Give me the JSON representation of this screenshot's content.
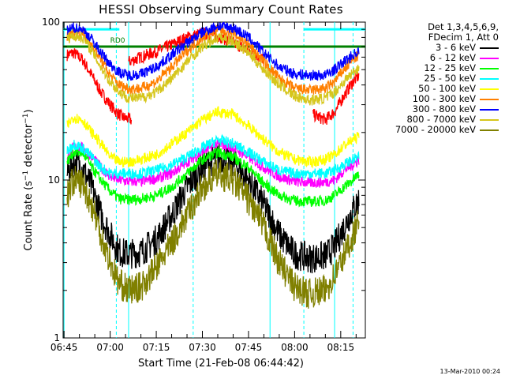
{
  "chart_data": {
    "type": "line",
    "title": "HESSI Observing Summary Count Rates",
    "xlabel": "Start Time (21-Feb-08 06:44:42)",
    "ylabel_parts": [
      "Count Rate (s",
      "−1",
      " detector",
      "−1",
      ")"
    ],
    "y_scale": "log",
    "ylim": [
      1,
      100
    ],
    "y_ticks": [
      1,
      10,
      100
    ],
    "y_tick_labels": [
      "1",
      "10",
      "100"
    ],
    "x_range_minutes": [
      "06:45",
      "08:23"
    ],
    "x_ticks": [
      "06:45",
      "07:00",
      "07:15",
      "07:30",
      "07:45",
      "08:00",
      "08:15"
    ],
    "legend_header": [
      "Det 1,3,4,5,6,9,",
      "FDecim 1, Att 0"
    ],
    "grid": false,
    "series": [
      {
        "name": "3 - 6 keV",
        "color": "#000000",
        "x": [
          "06:46",
          "06:48",
          "06:51",
          "06:54",
          "06:57",
          "07:00",
          "07:03",
          "07:06",
          "07:10",
          "07:15",
          "07:20",
          "07:25",
          "07:30",
          "07:35",
          "07:40",
          "07:45",
          "07:50",
          "07:55",
          "08:00",
          "08:05",
          "08:10",
          "08:13",
          "08:16",
          "08:19",
          "08:21"
        ],
        "values": [
          11,
          13,
          12,
          9,
          6,
          4.5,
          3.5,
          3.4,
          3.5,
          4.2,
          6,
          9,
          12,
          14,
          13,
          10,
          7,
          4.5,
          3.4,
          3.2,
          3.3,
          3.8,
          5,
          6.5,
          7.5
        ]
      },
      {
        "name": "6 - 12 keV",
        "color": "#ff00ff",
        "x": [
          "06:46",
          "06:48",
          "06:51",
          "06:54",
          "06:57",
          "07:00",
          "07:03",
          "07:06",
          "07:10",
          "07:15",
          "07:20",
          "07:25",
          "07:30",
          "07:35",
          "07:40",
          "07:45",
          "07:50",
          "07:55",
          "08:00",
          "08:05",
          "08:10",
          "08:13",
          "08:16",
          "08:19",
          "08:21"
        ],
        "values": [
          14,
          16,
          16,
          14,
          12,
          10.5,
          10,
          9.8,
          9.8,
          10.2,
          11,
          13,
          15,
          17,
          16,
          14,
          12,
          10.5,
          9.8,
          9.6,
          9.7,
          10,
          11.5,
          12.5,
          13.5
        ]
      },
      {
        "name": "12 - 25 keV",
        "color": "#00ff00",
        "x": [
          "06:46",
          "06:48",
          "06:51",
          "06:54",
          "06:57",
          "07:00",
          "07:03",
          "07:06",
          "07:10",
          "07:15",
          "07:20",
          "07:25",
          "07:30",
          "07:35",
          "07:40",
          "07:45",
          "07:50",
          "07:55",
          "08:00",
          "08:05",
          "08:10",
          "08:13",
          "08:16",
          "08:19",
          "08:21"
        ],
        "values": [
          13,
          15,
          15,
          12,
          10,
          8.5,
          7.6,
          7.5,
          7.6,
          8,
          9,
          11,
          13.5,
          15,
          14,
          12,
          9.5,
          8,
          7.4,
          7.3,
          7.4,
          8,
          9,
          10,
          11
        ]
      },
      {
        "name": "25 - 50 keV",
        "color": "#00ffff",
        "x": [
          "06:46",
          "06:48",
          "06:51",
          "06:54",
          "06:57",
          "07:00",
          "07:03",
          "07:06",
          "07:10",
          "07:15",
          "07:20",
          "07:25",
          "07:30",
          "07:35",
          "07:40",
          "07:45",
          "07:50",
          "07:55",
          "08:00",
          "08:05",
          "08:10",
          "08:13",
          "08:16",
          "08:19",
          "08:21"
        ],
        "values": [
          15,
          17,
          16,
          14,
          12,
          11,
          11,
          11,
          11,
          11.5,
          12.5,
          14,
          16,
          18,
          17,
          15,
          13,
          11.5,
          11,
          11,
          11,
          11.5,
          12.5,
          13.5,
          14
        ]
      },
      {
        "name": "50 - 100 keV",
        "color": "#ffff00",
        "x": [
          "06:46",
          "06:48",
          "06:51",
          "06:54",
          "06:57",
          "07:00",
          "07:03",
          "07:06",
          "07:10",
          "07:15",
          "07:20",
          "07:25",
          "07:30",
          "07:35",
          "07:40",
          "07:45",
          "07:50",
          "07:55",
          "08:00",
          "08:05",
          "08:10",
          "08:13",
          "08:16",
          "08:19",
          "08:21"
        ],
        "values": [
          22,
          25,
          24,
          20,
          17,
          14,
          13,
          13,
          13.5,
          14.5,
          17,
          20,
          24,
          27,
          26,
          22,
          18,
          15,
          13.5,
          13,
          13.5,
          14.5,
          16.5,
          18,
          19
        ]
      },
      {
        "name": "100 - 300 keV",
        "color": "#ff7f00",
        "x": [
          "06:46",
          "06:48",
          "06:51",
          "06:54",
          "06:57",
          "07:00",
          "07:03",
          "07:06",
          "07:10",
          "07:15",
          "07:20",
          "07:25",
          "07:30",
          "07:35",
          "07:40",
          "07:45",
          "07:50",
          "07:55",
          "08:00",
          "08:05",
          "08:10",
          "08:13",
          "08:16",
          "08:19",
          "08:21"
        ],
        "values": [
          82,
          86,
          85,
          72,
          58,
          46,
          40,
          38,
          38,
          42,
          52,
          66,
          80,
          90,
          85,
          72,
          56,
          44,
          38,
          37,
          38,
          42,
          50,
          58,
          62
        ]
      },
      {
        "name": "300 - 800 keV",
        "color": "#0000ff",
        "x": [
          "06:46",
          "06:48",
          "06:51",
          "06:54",
          "06:57",
          "07:00",
          "07:03",
          "07:06",
          "07:10",
          "07:15",
          "07:20",
          "07:25",
          "07:30",
          "07:35",
          "07:40",
          "07:45",
          "07:50",
          "07:55",
          "08:00",
          "08:05",
          "08:10",
          "08:13",
          "08:16",
          "08:19",
          "08:21"
        ],
        "values": [
          88,
          92,
          90,
          78,
          64,
          54,
          48,
          46,
          47,
          52,
          62,
          74,
          86,
          95,
          92,
          80,
          64,
          52,
          47,
          46,
          46,
          50,
          56,
          62,
          66
        ]
      },
      {
        "name": "800 - 7000 keV",
        "color": "#d6c61c",
        "x": [
          "06:46",
          "06:48",
          "06:51",
          "06:54",
          "06:57",
          "07:00",
          "07:03",
          "07:06",
          "07:10",
          "07:15",
          "07:20",
          "07:25",
          "07:30",
          "07:35",
          "07:40",
          "07:45",
          "07:50",
          "07:55",
          "08:00",
          "08:05",
          "08:10",
          "08:13",
          "08:16",
          "08:19",
          "08:21"
        ],
        "values": [
          78,
          82,
          80,
          66,
          52,
          42,
          36,
          33,
          33,
          36,
          44,
          56,
          70,
          80,
          76,
          64,
          50,
          40,
          34,
          32,
          33,
          36,
          42,
          48,
          52
        ]
      },
      {
        "name": "7000 - 20000 keV",
        "color": "#808000",
        "x": [
          "06:46",
          "06:48",
          "06:51",
          "06:54",
          "06:57",
          "07:00",
          "07:03",
          "07:06",
          "07:10",
          "07:15",
          "07:20",
          "07:25",
          "07:30",
          "07:35",
          "07:40",
          "07:45",
          "07:50",
          "07:55",
          "08:00",
          "08:05",
          "08:10",
          "08:13",
          "08:16",
          "08:19",
          "08:21"
        ],
        "values": [
          8,
          10,
          9.5,
          7,
          4.5,
          3,
          2.2,
          2,
          2.1,
          2.8,
          4,
          6,
          9,
          11,
          10,
          7.5,
          5,
          3,
          2.1,
          1.9,
          2,
          2.5,
          3.3,
          4.5,
          5.5
        ]
      }
    ],
    "extra_series": [
      {
        "color": "#ff0000",
        "x": [
          "06:46",
          "06:48",
          "06:51",
          "06:54",
          "06:57",
          "07:00",
          "07:02",
          "07:04",
          "07:07"
        ],
        "values": [
          62,
          64,
          58,
          46,
          36,
          30,
          27,
          25,
          24
        ]
      },
      {
        "color": "#ff0000",
        "x": [
          "07:06",
          "07:10",
          "07:15",
          "07:20",
          "07:25",
          "07:30",
          "07:35",
          "07:40",
          "07:45",
          "07:50"
        ],
        "values": [
          56,
          60,
          65,
          72,
          80,
          85,
          82,
          74,
          66,
          58
        ]
      },
      {
        "color": "#ff0000",
        "x": [
          "08:06",
          "08:10",
          "08:13",
          "08:16",
          "08:19",
          "08:21"
        ],
        "values": [
          26,
          24,
          27,
          34,
          42,
          46
        ]
      }
    ],
    "annotations": {
      "decim_label": "RD0",
      "green_flag_value": 70,
      "cyan_flag_value": 90,
      "vertical_markers": [
        "06:45",
        "07:02",
        "07:06",
        "07:27",
        "07:52",
        "08:03",
        "08:13",
        "08:19"
      ]
    }
  },
  "footer_stamp": "13-Mar-2010 00:24"
}
